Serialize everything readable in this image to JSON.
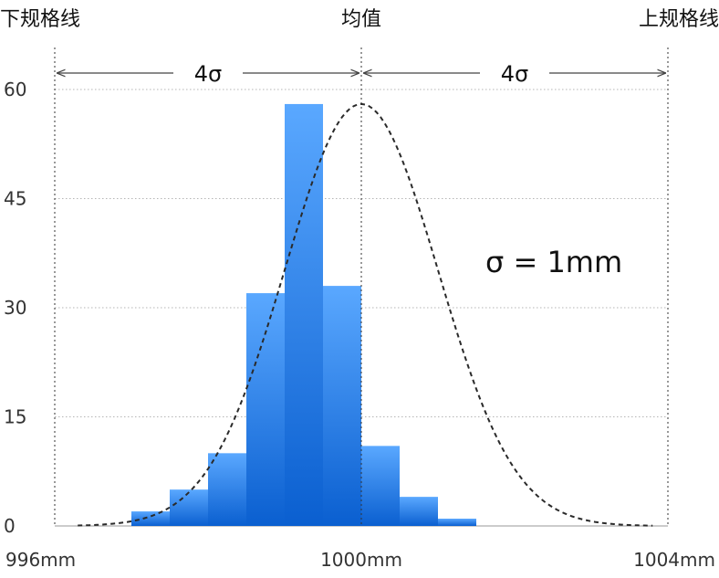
{
  "chart_data": {
    "type": "bar",
    "bins": [
      {
        "x0": 997.0,
        "x1": 997.5,
        "value": 2
      },
      {
        "x0": 997.5,
        "x1": 998.0,
        "value": 5
      },
      {
        "x0": 998.0,
        "x1": 998.5,
        "value": 10
      },
      {
        "x0": 998.5,
        "x1": 999.0,
        "value": 32
      },
      {
        "x0": 999.0,
        "x1": 999.5,
        "value": 58
      },
      {
        "x0": 999.5,
        "x1": 1000.0,
        "value": 33
      },
      {
        "x0": 1000.0,
        "x1": 1000.5,
        "value": 11
      },
      {
        "x0": 1000.5,
        "x1": 1001.0,
        "value": 4
      },
      {
        "x0": 1001.0,
        "x1": 1001.5,
        "value": 1
      }
    ],
    "curve": {
      "type": "normal",
      "mean": 1000,
      "sigma": 1,
      "peak": 58
    },
    "xlim": [
      996,
      1004
    ],
    "ylim": [
      0,
      60
    ],
    "y_ticks": [
      0,
      15,
      30,
      45,
      60
    ],
    "y_tick_labels": [
      "0",
      "15",
      "30",
      "45",
      "60"
    ],
    "x_tick_labels": [
      {
        "value": 996,
        "label": "996mm"
      },
      {
        "value": 1000,
        "label": "1000mm"
      },
      {
        "value": 1004,
        "label": "1004mm"
      }
    ],
    "vertical_lines": [
      {
        "value": 996,
        "label": "下规格线"
      },
      {
        "value": 1000,
        "label": "均值"
      },
      {
        "value": 1004,
        "label": "上规格线"
      }
    ],
    "spans": [
      {
        "from": 996,
        "to": 1000,
        "label": "4σ"
      },
      {
        "from": 1000,
        "to": 1004,
        "label": "4σ"
      }
    ],
    "annotation": "σ = 1mm",
    "grid": true,
    "colors": {
      "bar_top": "#5aa8ff",
      "bar_bottom": "#0a5fd0",
      "curve": "#2a2a2a",
      "grid": "#b5b5b5",
      "baseline": "#999999"
    }
  }
}
